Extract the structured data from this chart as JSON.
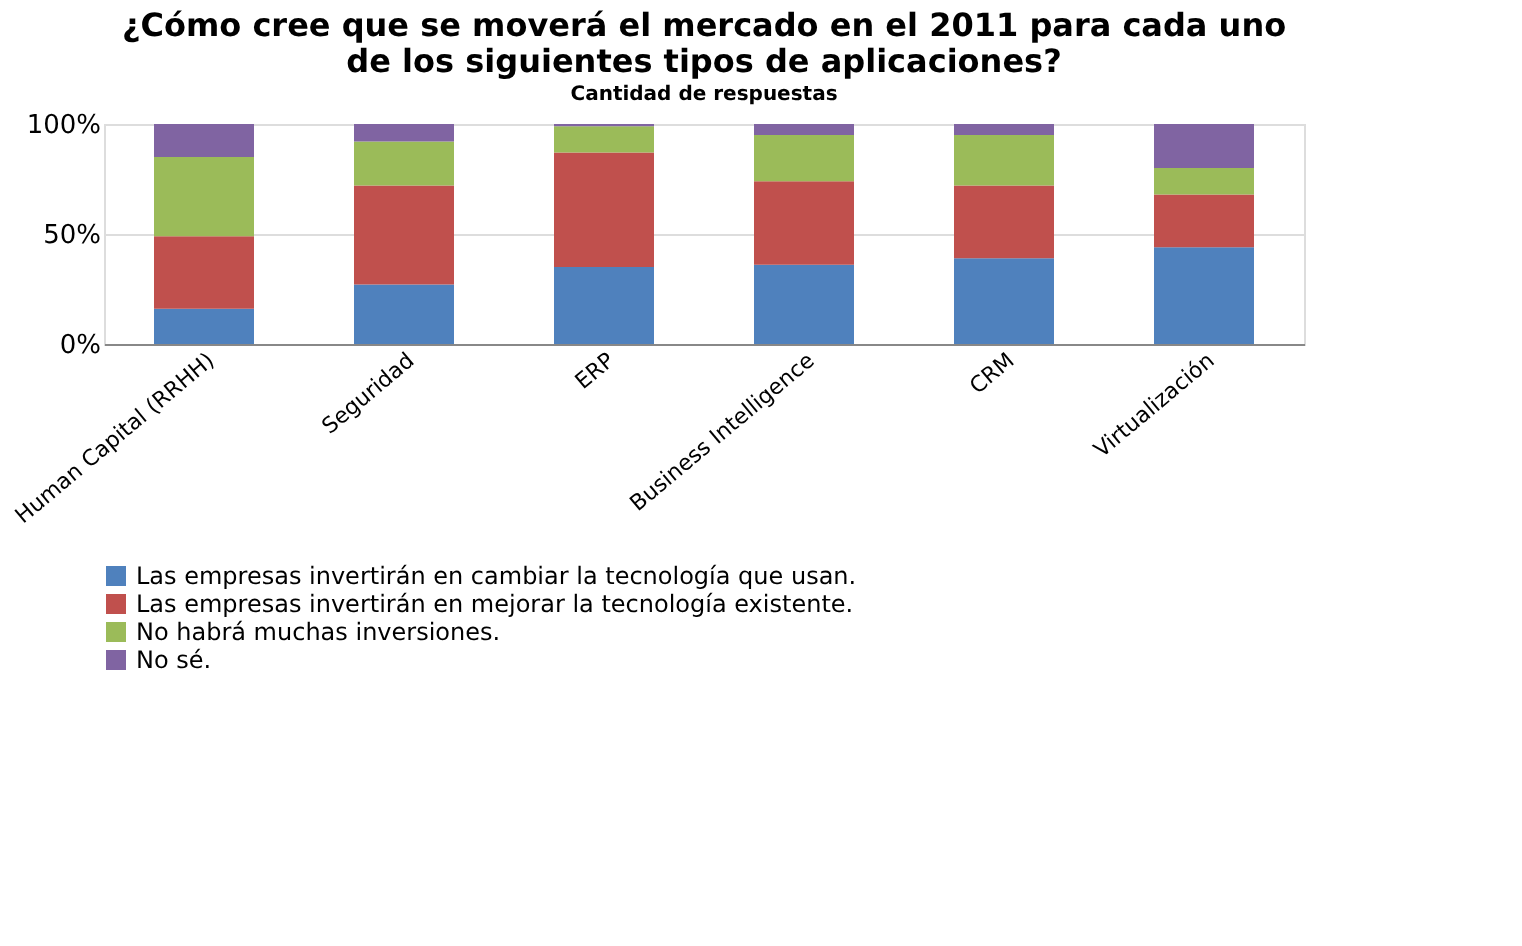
{
  "chart_data": {
    "type": "bar",
    "stacked": true,
    "title": [
      "¿Cómo cree que se moverá el mercado en el 2011 para cada uno",
      "de los siguientes tipos de aplicaciones?"
    ],
    "subtitle": "Cantidad de respuestas",
    "categories": [
      "Human Capital (RRHH)",
      "Seguridad",
      "ERP",
      "Business Intelligence",
      "CRM",
      "Virtualización"
    ],
    "series": [
      {
        "name": "Las empresas invertirán en cambiar la tecnología que usan.",
        "color": "#4f81bd",
        "values": [
          16,
          27,
          35,
          36,
          39,
          44
        ]
      },
      {
        "name": "Las empresas invertirán en mejorar la tecnología existente.",
        "color": "#c0504d",
        "values": [
          33,
          45,
          52,
          38,
          33,
          24
        ]
      },
      {
        "name": "No habrá muchas inversiones.",
        "color": "#9bbb59",
        "values": [
          36,
          20,
          12,
          21,
          23,
          12
        ]
      },
      {
        "name": "No sé.",
        "color": "#8064a2",
        "values": [
          15,
          8,
          1,
          5,
          5,
          20
        ]
      }
    ],
    "ylim": [
      0,
      100
    ],
    "yticks": [
      {
        "value": 0,
        "label": "0%"
      },
      {
        "value": 50,
        "label": "50%"
      },
      {
        "value": 100,
        "label": "100%"
      }
    ],
    "grid": "y",
    "legend": "bottom"
  }
}
